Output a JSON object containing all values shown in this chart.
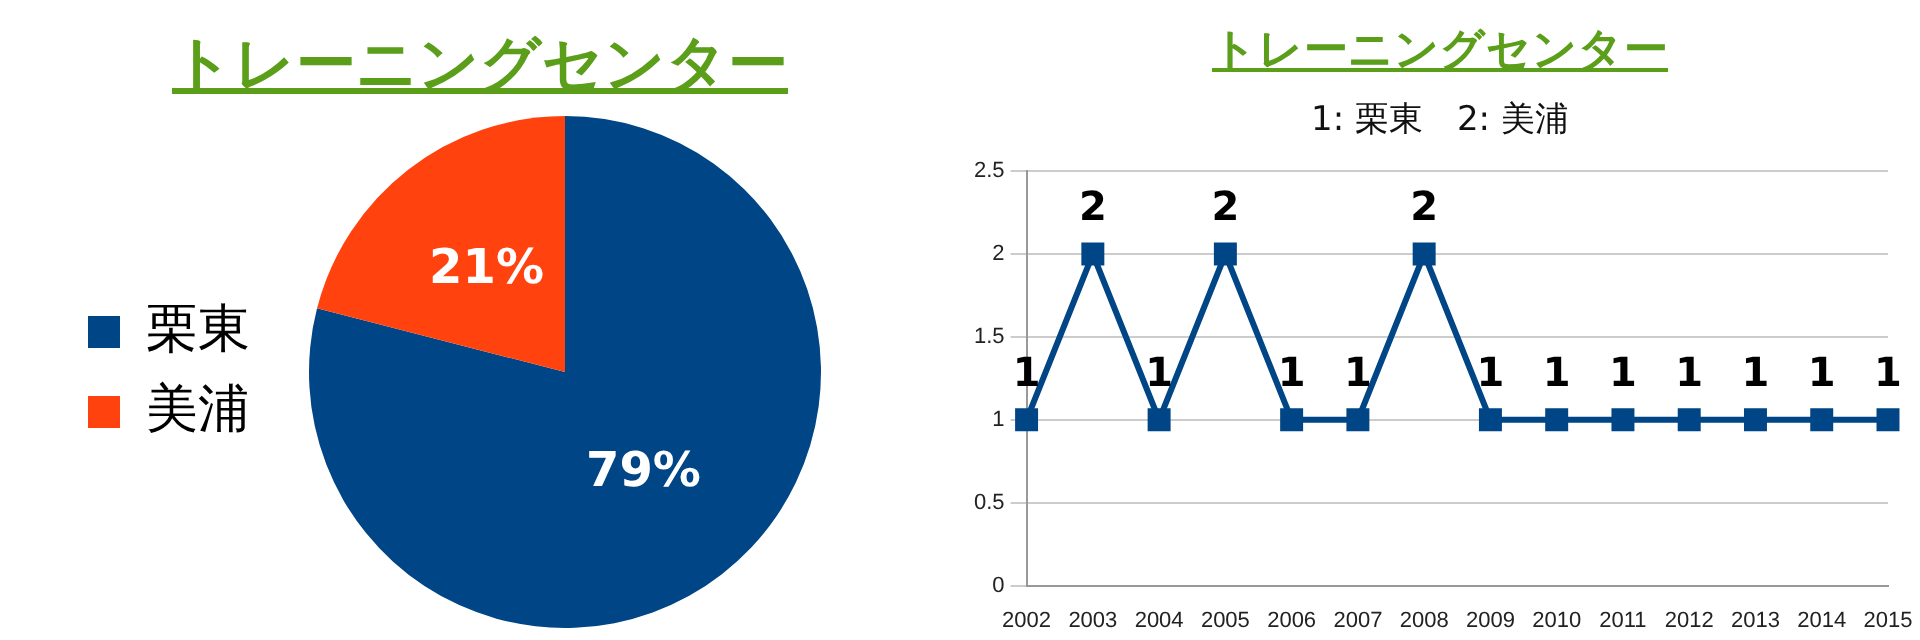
{
  "chart_data": [
    {
      "type": "pie",
      "title": "トレーニングセンター",
      "categories": [
        "栗東",
        "美浦"
      ],
      "values": [
        79,
        21
      ],
      "colors": [
        "#004586",
        "#ff420e"
      ],
      "value_labels": [
        "79%",
        "21%"
      ],
      "legend": "left"
    },
    {
      "type": "line",
      "title": "トレーニングセンター",
      "subtitle": "1: 栗東　2: 美浦",
      "categories": [
        "2002",
        "2003",
        "2004",
        "2005",
        "2006",
        "2007",
        "2008",
        "2009",
        "2010",
        "2011",
        "2012",
        "2013",
        "2014",
        "2015"
      ],
      "values": [
        1,
        2,
        1,
        2,
        1,
        1,
        2,
        1,
        1,
        1,
        1,
        1,
        1,
        1
      ],
      "color": "#004586",
      "marker": "square",
      "data_labels": true,
      "ylim": [
        0,
        2.5
      ],
      "yticks": [
        0,
        0.5,
        1,
        1.5,
        2,
        2.5
      ],
      "grid": "y",
      "legend": false
    }
  ]
}
